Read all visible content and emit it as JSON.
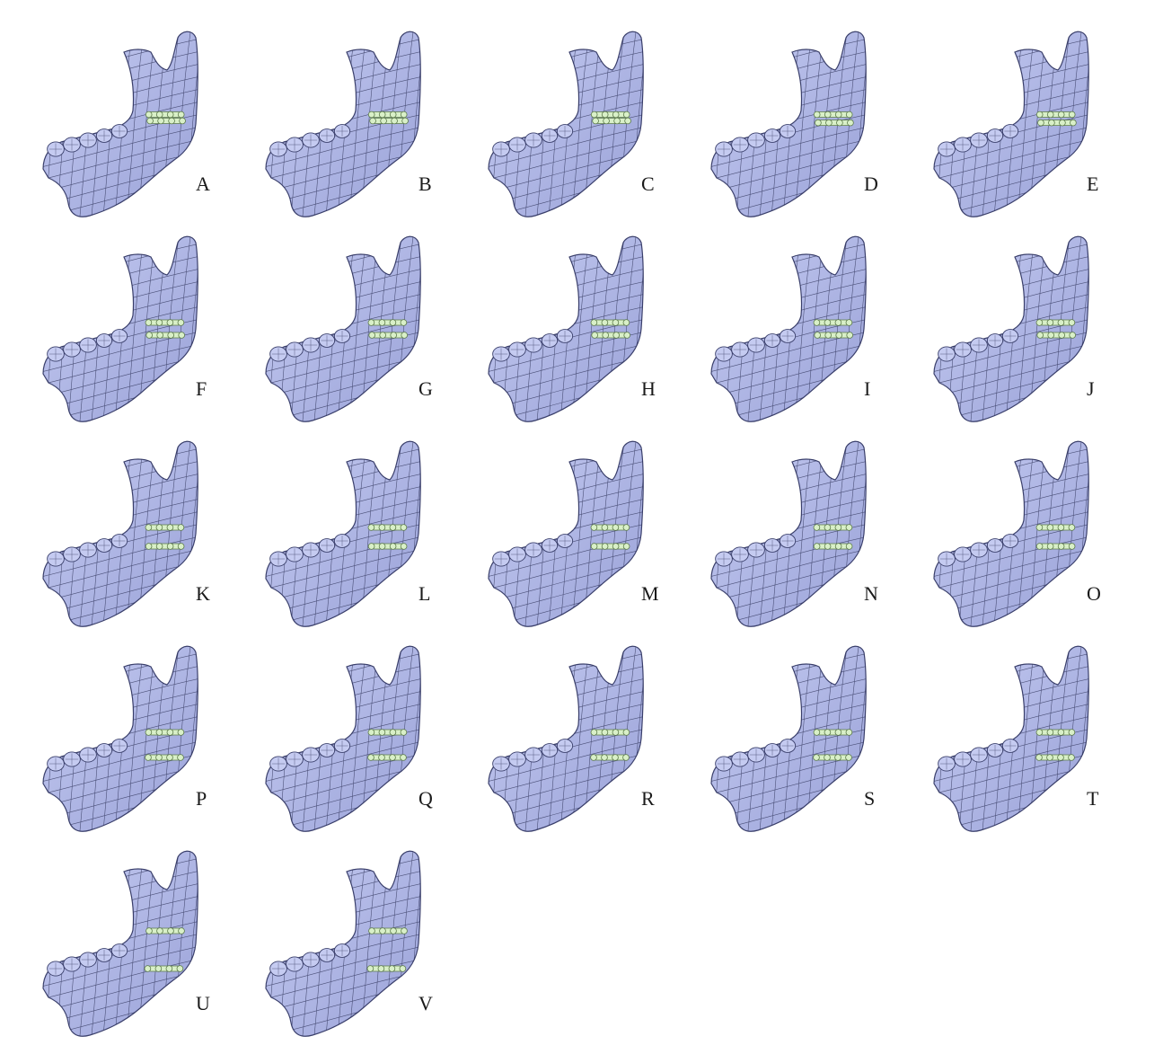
{
  "figure": {
    "colors": {
      "bone_fill": "#c5cbf1",
      "bone_shade": "#9aa2d8",
      "mesh_line": "#2b2f55",
      "outline": "#3a3f6b",
      "plate_fill": "#d9f0c8",
      "plate_stroke": "#5c7a4a",
      "label_text": "#1a1a1a"
    },
    "icon": "mandible-mesh-with-two-miniplates",
    "panels": [
      {
        "label": "A",
        "plate_positions": [
          0.05,
          0.15
        ]
      },
      {
        "label": "B",
        "plate_positions": [
          0.05,
          0.15
        ]
      },
      {
        "label": "C",
        "plate_positions": [
          0.05,
          0.15
        ]
      },
      {
        "label": "D",
        "plate_positions": [
          0.05,
          0.18
        ]
      },
      {
        "label": "E",
        "plate_positions": [
          0.05,
          0.18
        ]
      },
      {
        "label": "F",
        "plate_positions": [
          0.1,
          0.3
        ]
      },
      {
        "label": "G",
        "plate_positions": [
          0.1,
          0.3
        ]
      },
      {
        "label": "H",
        "plate_positions": [
          0.1,
          0.3
        ]
      },
      {
        "label": "I",
        "plate_positions": [
          0.1,
          0.3
        ]
      },
      {
        "label": "J",
        "plate_positions": [
          0.1,
          0.3
        ]
      },
      {
        "label": "K",
        "plate_positions": [
          0.1,
          0.4
        ]
      },
      {
        "label": "L",
        "plate_positions": [
          0.1,
          0.4
        ]
      },
      {
        "label": "M",
        "plate_positions": [
          0.1,
          0.4
        ]
      },
      {
        "label": "N",
        "plate_positions": [
          0.1,
          0.4
        ]
      },
      {
        "label": "O",
        "plate_positions": [
          0.1,
          0.4
        ]
      },
      {
        "label": "P",
        "plate_positions": [
          0.1,
          0.5
        ]
      },
      {
        "label": "Q",
        "plate_positions": [
          0.1,
          0.5
        ]
      },
      {
        "label": "R",
        "plate_positions": [
          0.1,
          0.5
        ]
      },
      {
        "label": "S",
        "plate_positions": [
          0.1,
          0.5
        ]
      },
      {
        "label": "T",
        "plate_positions": [
          0.1,
          0.5
        ]
      },
      {
        "label": "U",
        "plate_positions": [
          0.0,
          0.6
        ]
      },
      {
        "label": "V",
        "plate_positions": [
          0.0,
          0.6
        ]
      }
    ]
  }
}
